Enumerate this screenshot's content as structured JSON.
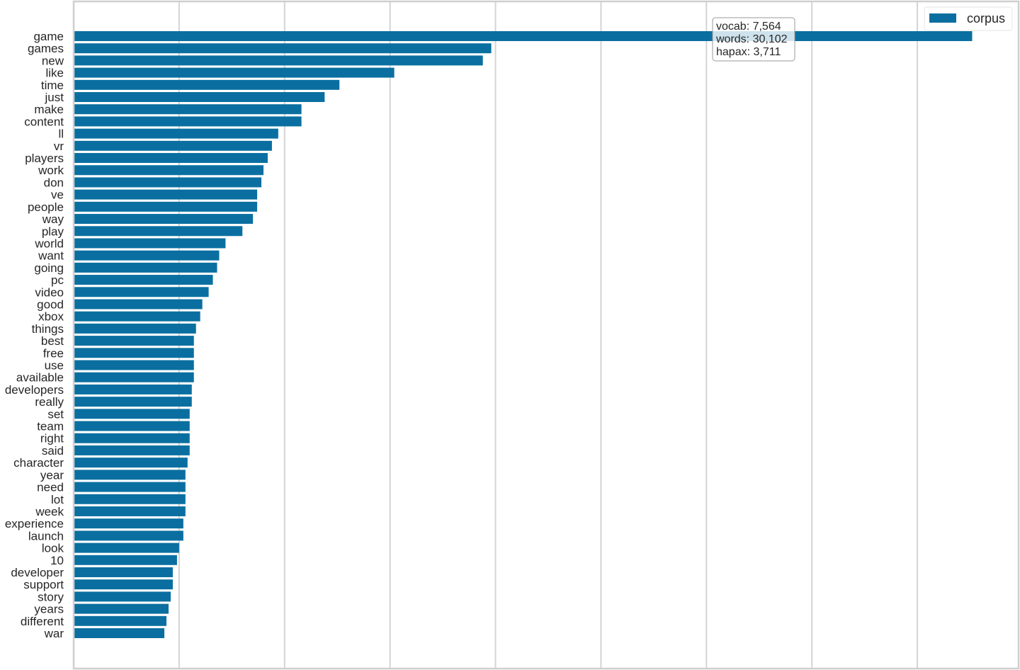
{
  "chart_data": {
    "type": "bar",
    "orientation": "horizontal",
    "categories": [
      "game",
      "games",
      "new",
      "like",
      "time",
      "just",
      "make",
      "content",
      "ll",
      "vr",
      "players",
      "work",
      "don",
      "ve",
      "people",
      "way",
      "play",
      "world",
      "want",
      "going",
      "pc",
      "video",
      "good",
      "xbox",
      "things",
      "best",
      "free",
      "use",
      "available",
      "developers",
      "really",
      "set",
      "team",
      "right",
      "said",
      "character",
      "year",
      "need",
      "lot",
      "week",
      "experience",
      "launch",
      "look",
      "10",
      "developer",
      "support",
      "story",
      "years",
      "different",
      "war"
    ],
    "series": [
      {
        "name": "corpus",
        "color": "#0a6fa0",
        "values": [
          426,
          198,
          194,
          152,
          126,
          119,
          108,
          108,
          97,
          94,
          92,
          90,
          89,
          87,
          87,
          85,
          80,
          72,
          69,
          68,
          66,
          64,
          61,
          60,
          58,
          57,
          57,
          57,
          57,
          56,
          56,
          55,
          55,
          55,
          55,
          54,
          53,
          53,
          53,
          53,
          52,
          52,
          50,
          49,
          47,
          47,
          46,
          45,
          44,
          43
        ]
      }
    ],
    "title": "",
    "xlabel": "",
    "ylabel": "",
    "xlim": [
      0,
      448
    ],
    "x_tick_labels_shown": false,
    "grid": true,
    "legend": "top-right",
    "stats": {
      "vocab": "vocab: 7,564",
      "words": "words: 30,102",
      "hapax": "hapax: 3,711"
    }
  }
}
